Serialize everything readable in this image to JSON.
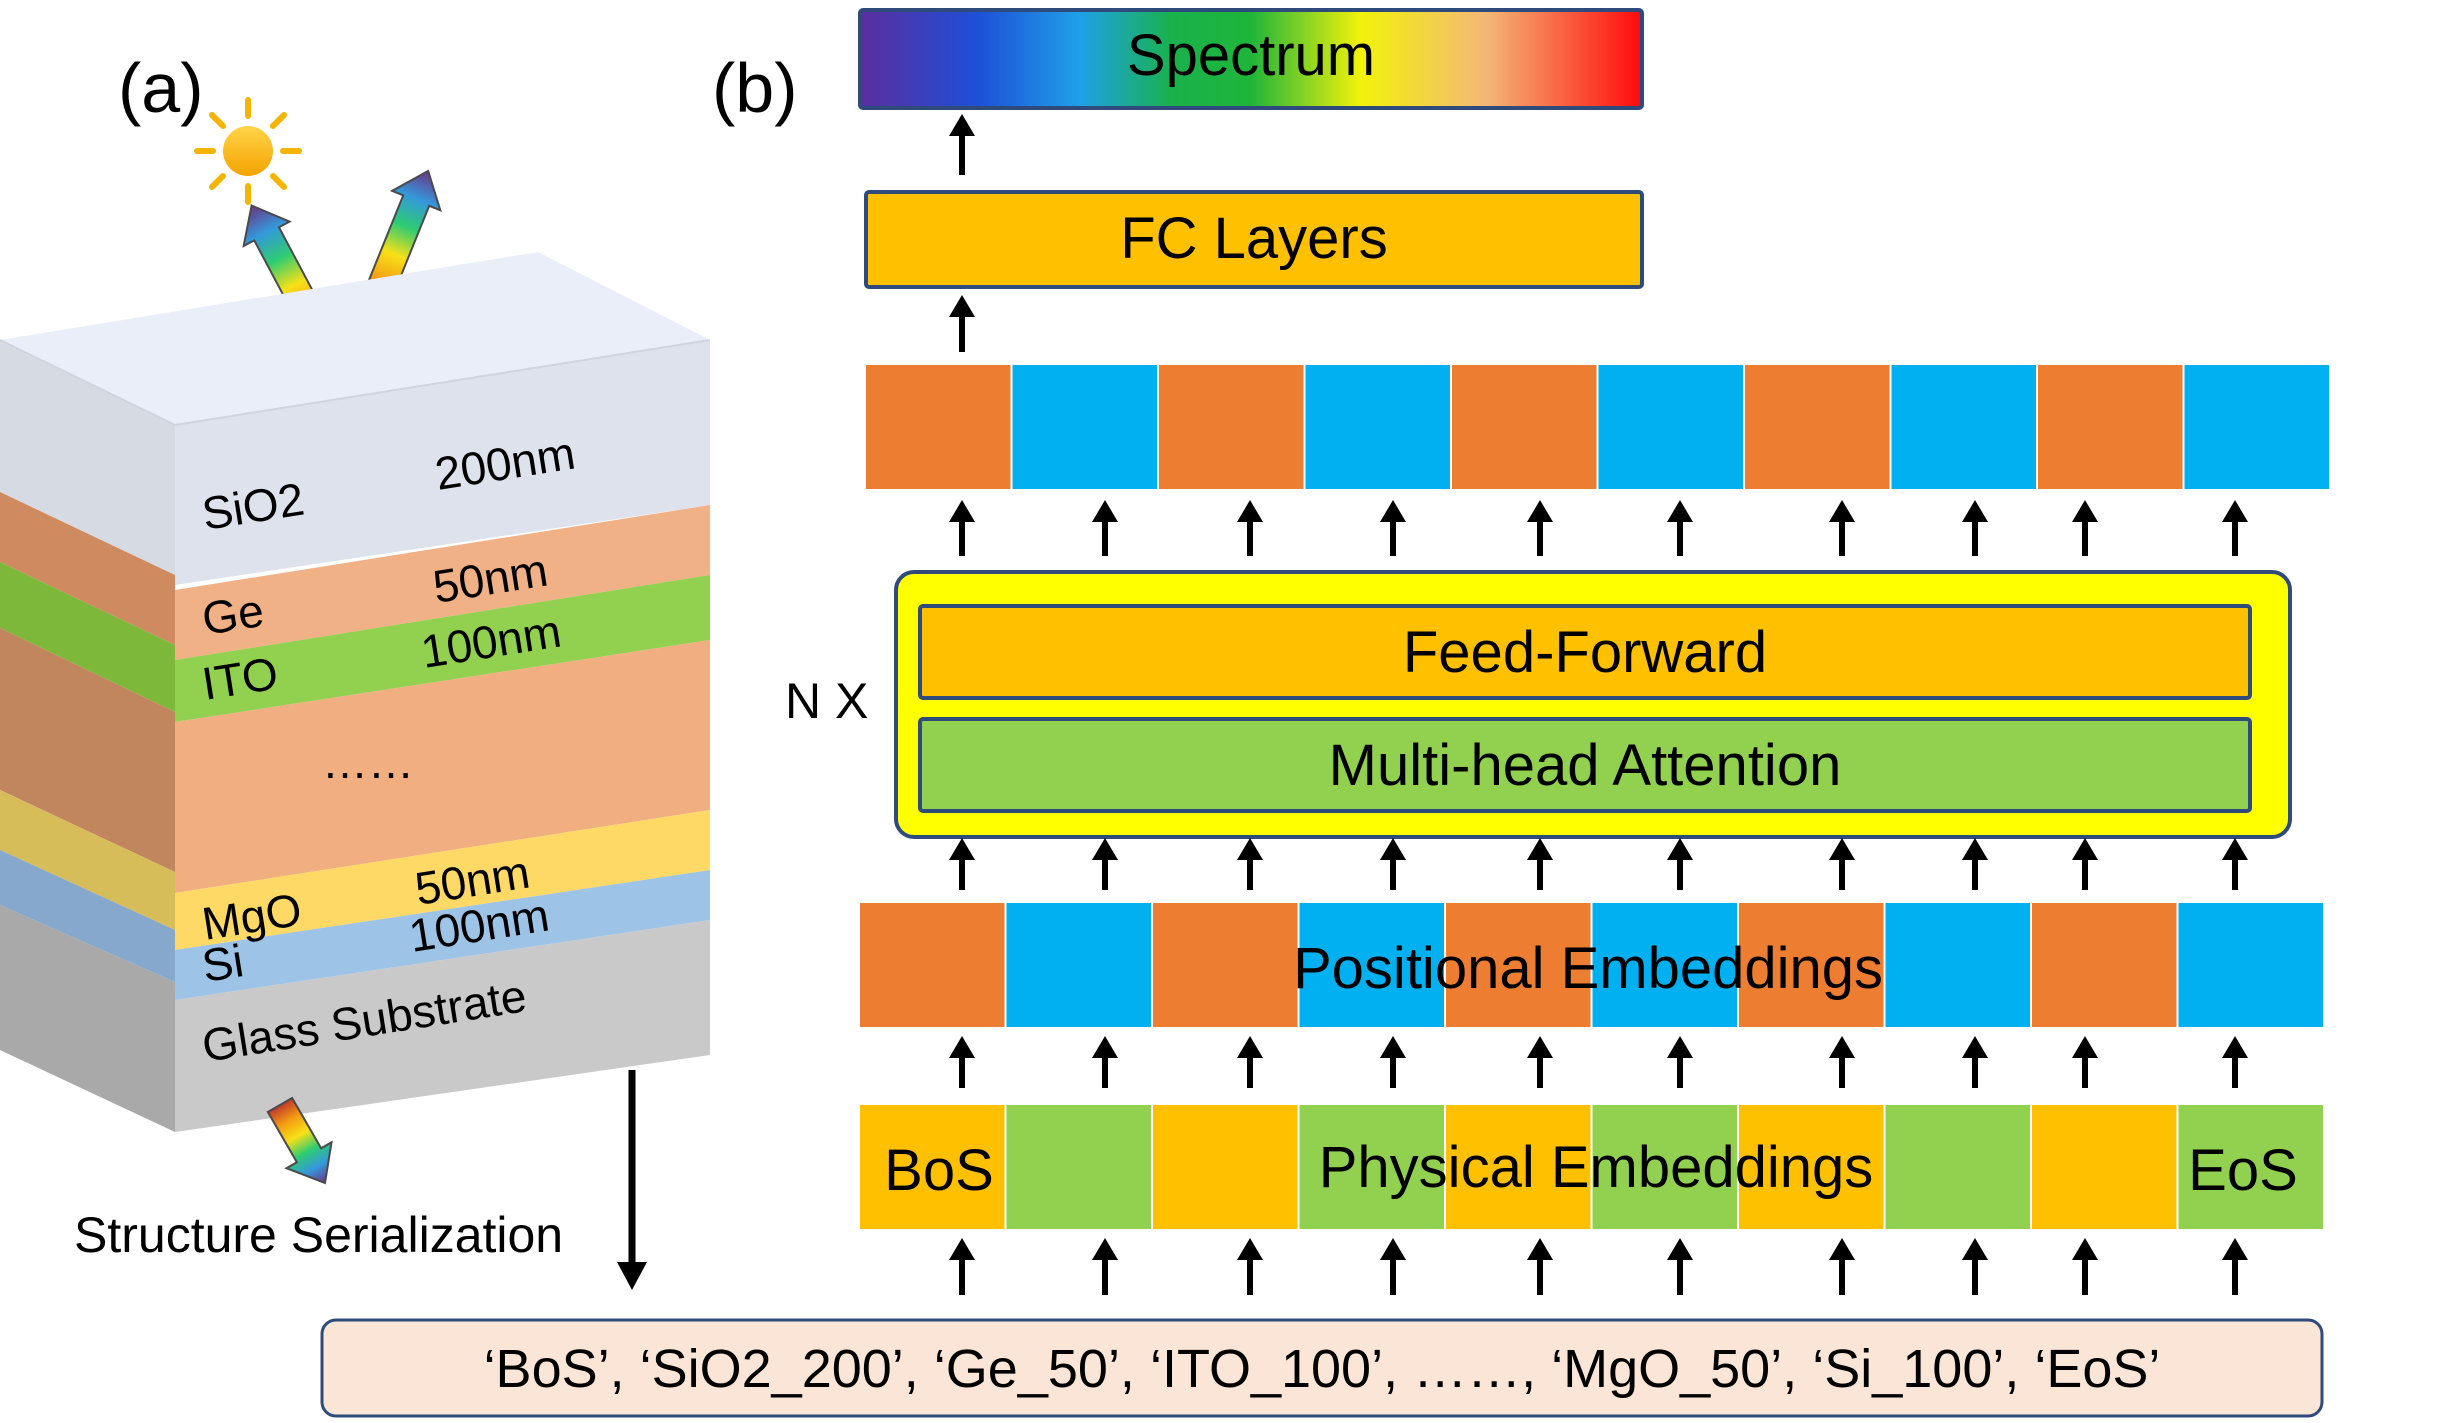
{
  "panel_a": {
    "label": "(a)",
    "layers": [
      {
        "material": "SiO2",
        "thickness": "200nm"
      },
      {
        "material": "Ge",
        "thickness": "50nm"
      },
      {
        "material": "ITO",
        "thickness": "100nm"
      },
      {
        "material": "",
        "thickness": "",
        "ellipsis": "……"
      },
      {
        "material": "MgO",
        "thickness": "50nm"
      },
      {
        "material": "Si",
        "thickness": "100nm"
      },
      {
        "material": "Glass Substrate",
        "thickness": ""
      }
    ],
    "serialization_label": "Structure Serialization"
  },
  "panel_b": {
    "label": "(b)",
    "spectrum_label": "Spectrum",
    "fc_label": "FC Layers",
    "repeat_label": "N X",
    "feed_forward_label": "Feed-Forward",
    "attention_label": "Multi-head Attention",
    "positional_label": "Positional Embeddings",
    "physical_label": "Physical Embeddings",
    "bos_label": "BoS",
    "eos_label": "EoS",
    "token_sequence": "‘BoS’, ‘SiO2_200’, ‘Ge_50’, ‘ITO_100’, ……, ‘MgO_50’, ‘Si_100’, ‘EoS’"
  },
  "colors": {
    "orange_token": "#ED7D31",
    "blue_token": "#00B0F0",
    "yellow_token": "#FFC000",
    "green_token": "#92D050",
    "block_border": "#2F4B7C",
    "transformer_fill": "#FFFF00",
    "sequence_fill": "#FBE5D6"
  }
}
